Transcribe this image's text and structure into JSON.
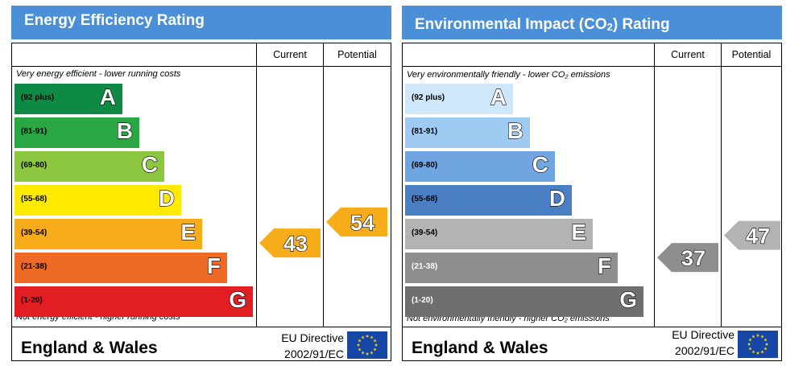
{
  "chart_data": [
    {
      "type": "table",
      "title": "Energy Efficiency Rating",
      "columns": [
        "Current",
        "Potential"
      ],
      "top_note": "Very energy efficient - lower running costs",
      "bottom_note": "Not energy efficient - higher running costs",
      "bands": [
        {
          "range": "(92 plus)",
          "letter": "A",
          "color": "#0f8a45"
        },
        {
          "range": "(81-91)",
          "letter": "B",
          "color": "#29a745"
        },
        {
          "range": "(69-80)",
          "letter": "C",
          "color": "#8dc63f"
        },
        {
          "range": "(55-68)",
          "letter": "D",
          "color": "#ffea00"
        },
        {
          "range": "(39-54)",
          "letter": "E",
          "color": "#f7ac1a"
        },
        {
          "range": "(21-38)",
          "letter": "F",
          "color": "#ee6a25"
        },
        {
          "range": "(1-20)",
          "letter": "G",
          "color": "#e31d24"
        }
      ],
      "current": {
        "value": 43,
        "color": "#f7ac1a"
      },
      "potential": {
        "value": 54,
        "color": "#f7ac1a"
      },
      "footer": {
        "region": "England & Wales",
        "directive_line1": "EU Directive",
        "directive_line2": "2002/91/EC"
      }
    },
    {
      "type": "table",
      "title": "Environmental Impact (CO2) Rating",
      "title_parts": {
        "pre": "Environmental Impact (CO",
        "sub": "2",
        "post": ") Rating"
      },
      "columns": [
        "Current",
        "Potential"
      ],
      "top_note": "Very environmentally friendly - lower CO₂ emissions",
      "bottom_note": "Not environmentally friendly - higher CO₂ emissions",
      "bands": [
        {
          "range": "(92 plus)",
          "letter": "A",
          "color": "#cfe7fa"
        },
        {
          "range": "(81-91)",
          "letter": "B",
          "color": "#9fcaf2"
        },
        {
          "range": "(69-80)",
          "letter": "C",
          "color": "#6fa5e0"
        },
        {
          "range": "(55-68)",
          "letter": "D",
          "color": "#4a7fc4"
        },
        {
          "range": "(39-54)",
          "letter": "E",
          "color": "#b3b3b3"
        },
        {
          "range": "(21-38)",
          "letter": "F",
          "color": "#8e8e8e"
        },
        {
          "range": "(1-20)",
          "letter": "G",
          "color": "#6f6f6f"
        }
      ],
      "current": {
        "value": 37,
        "color": "#8e8e8e"
      },
      "potential": {
        "value": 47,
        "color": "#b3b3b3"
      },
      "footer": {
        "region": "England & Wales",
        "directive_line1": "EU Directive",
        "directive_line2": "2002/91/EC"
      }
    }
  ]
}
